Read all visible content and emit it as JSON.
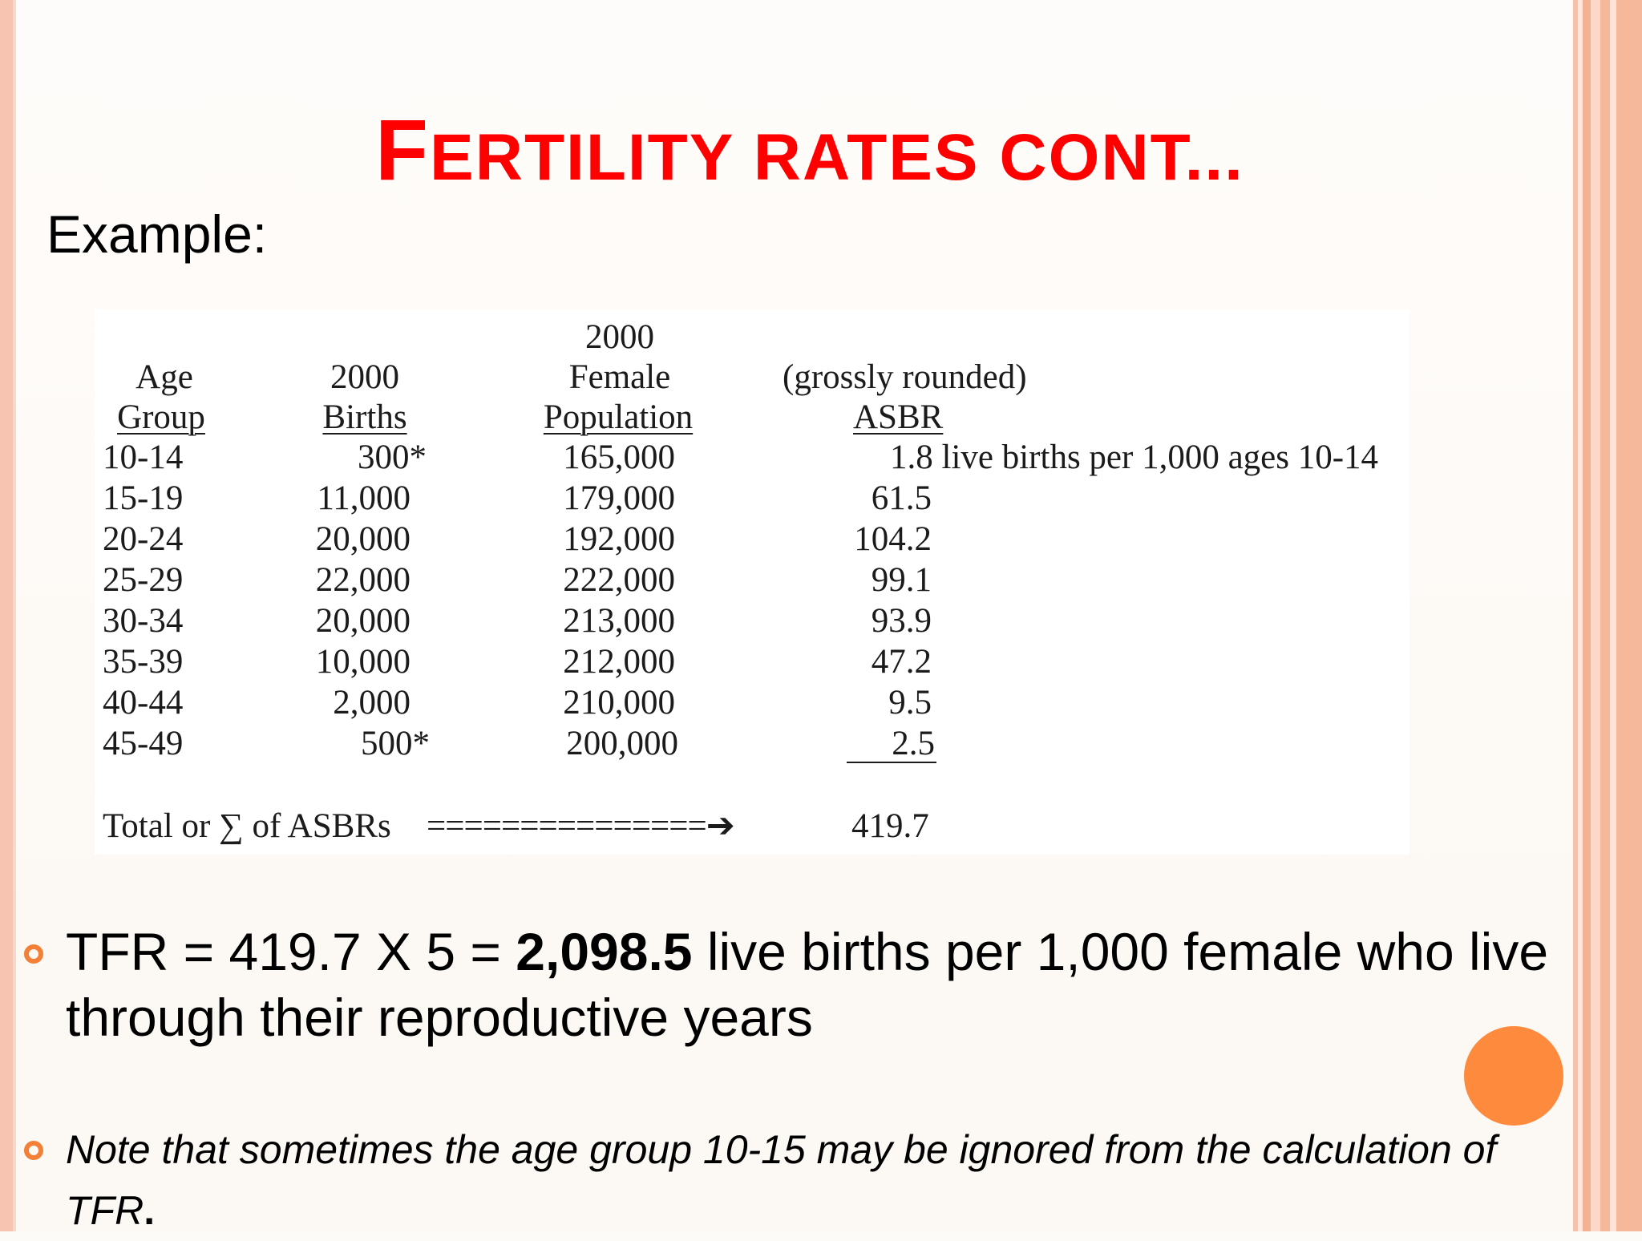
{
  "title": {
    "first_letter": "F",
    "rest": "ERTILITY RATES CONT..."
  },
  "example_label": "Example:",
  "table": {
    "headers": {
      "age_line1": "Age",
      "age_line2": "Group",
      "births_line1": "2000",
      "births_line2": "Births",
      "pop_line1": "2000",
      "pop_line2": "Female",
      "pop_line3": "Population",
      "asbr_line1": "(grossly rounded)",
      "asbr_line2": "ASBR"
    },
    "rows": [
      {
        "age": "10-14",
        "births": "300*",
        "population": "165,000",
        "asbr": "1.8 live births per 1,000 ages 10-14"
      },
      {
        "age": "15-19",
        "births": "11,000",
        "population": "179,000",
        "asbr": "61.5"
      },
      {
        "age": "20-24",
        "births": "20,000",
        "population": "192,000",
        "asbr": "104.2"
      },
      {
        "age": "25-29",
        "births": "22,000",
        "population": "222,000",
        "asbr": "99.1"
      },
      {
        "age": "30-34",
        "births": "20,000",
        "population": "213,000",
        "asbr": "93.9"
      },
      {
        "age": "35-39",
        "births": "10,000",
        "population": "212,000",
        "asbr": "47.2"
      },
      {
        "age": "40-44",
        "births": "2,000",
        "population": "210,000",
        "asbr": "9.5"
      },
      {
        "age": "45-49",
        "births": "500*",
        "population": "200,000",
        "asbr": "2.5"
      }
    ],
    "total_label": "Total or ∑ of ASBRs",
    "total_arrow": "===============➔",
    "total_value": "419.7"
  },
  "bullets": [
    {
      "prefix": "TFR = 419.7 X 5 = ",
      "bold": "2,098.5",
      "suffix": " live births per 1,000 female who live through their reproductive years"
    },
    {
      "text": "Note that sometimes the age group 10-15 may be ignored from the calculation of TFR",
      "end": "."
    }
  ],
  "colors": {
    "title": "#ff0000",
    "accent_orange": "#f47f36",
    "dot_orange": "#fd8a3d"
  }
}
